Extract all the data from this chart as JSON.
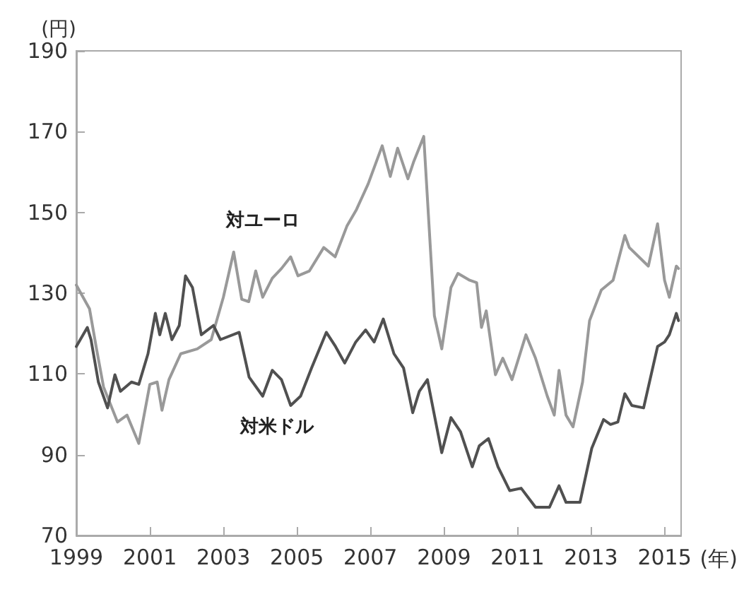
{
  "chart_data": {
    "type": "line",
    "xlabel": "(年)",
    "ylabel": "(円)",
    "xlim": [
      1999,
      2015.45
    ],
    "ylim": [
      70,
      190
    ],
    "xticks": [
      1999,
      2001,
      2003,
      2005,
      2007,
      2009,
      2011,
      2013,
      2015
    ],
    "yticks": [
      70,
      90,
      110,
      130,
      150,
      170,
      190
    ],
    "grid": false,
    "marker": "none",
    "line_style": "solid",
    "series": [
      {
        "name": "対ユーロ",
        "color": "#999999",
        "x": [
          1999,
          1999.36,
          1999.55,
          1999.74,
          2000.12,
          2000.38,
          2000.7,
          2001,
          2001.2,
          2001.33,
          2001.52,
          2001.84,
          2002.29,
          2002.67,
          2003,
          2003.28,
          2003.5,
          2003.69,
          2003.88,
          2004.07,
          2004.33,
          2004.58,
          2004.83,
          2005.03,
          2005.34,
          2005.73,
          2006.04,
          2006.36,
          2006.62,
          2006.94,
          2007.32,
          2007.54,
          2007.74,
          2008.02,
          2008.17,
          2008.45,
          2008.74,
          2008.94,
          2009.19,
          2009.38,
          2009.7,
          2009.89,
          2010.02,
          2010.15,
          2010.4,
          2010.6,
          2010.85,
          2011.23,
          2011.49,
          2011.81,
          2012,
          2012.13,
          2012.32,
          2012.51,
          2012.77,
          2012.96,
          2013.28,
          2013.6,
          2013.92,
          2014.04,
          2014.56,
          2014.81,
          2015,
          2015.13,
          2015.32,
          2015.38
        ],
        "values": [
          132,
          126.1,
          116.2,
          106.8,
          98.1,
          99.8,
          92.8,
          107.4,
          108,
          101,
          108.6,
          115,
          116.2,
          118.5,
          129,
          140.2,
          128.5,
          127.9,
          135.5,
          129,
          133.7,
          136.1,
          139,
          134.3,
          135.5,
          141.3,
          139,
          146.6,
          150.7,
          157.1,
          166.5,
          158.9,
          165.9,
          158.3,
          162.4,
          168.8,
          124.4,
          116.2,
          131.4,
          134.9,
          133.2,
          132.6,
          121.5,
          125.6,
          109.8,
          113.9,
          108.6,
          119.7,
          113.9,
          104.5,
          99.8,
          110.9,
          99.8,
          96.9,
          108,
          123.2,
          130.8,
          133.2,
          144.3,
          141.3,
          136.7,
          147.2,
          133.2,
          129,
          136.7,
          136.1
        ]
      },
      {
        "name": "対米ドル",
        "color": "#505050",
        "x": [
          1999,
          1999.3,
          1999.4,
          1999.6,
          1999.85,
          2000.05,
          2000.2,
          2000.5,
          2000.7,
          2000.95,
          2001.15,
          2001.27,
          2001.42,
          2001.6,
          2001.8,
          2001.97,
          2002.16,
          2002.4,
          2002.73,
          2002.92,
          2003.43,
          2003.7,
          2004.07,
          2004.33,
          2004.58,
          2004.83,
          2005.1,
          2005.4,
          2005.8,
          2006.05,
          2006.3,
          2006.6,
          2006.87,
          2007.1,
          2007.35,
          2007.64,
          2007.9,
          2008.15,
          2008.33,
          2008.55,
          2008.94,
          2009.19,
          2009.45,
          2009.77,
          2009.96,
          2010.21,
          2010.47,
          2010.79,
          2011.1,
          2011.49,
          2011.87,
          2012.13,
          2012.32,
          2012.7,
          2013.02,
          2013.34,
          2013.53,
          2013.73,
          2013.92,
          2014.11,
          2014.43,
          2014.81,
          2015,
          2015.13,
          2015.32,
          2015.38
        ],
        "values": [
          116.8,
          121.5,
          118.5,
          108,
          101.6,
          109.8,
          105.7,
          108,
          107.4,
          115,
          125,
          119.7,
          125,
          118.5,
          122,
          134.3,
          131.4,
          119.7,
          122,
          118.5,
          120.3,
          109.2,
          104.5,
          110.9,
          108.6,
          102.2,
          104.5,
          111.5,
          120.3,
          116.8,
          112.7,
          117.9,
          120.9,
          117.9,
          123.6,
          115,
          111.5,
          100.4,
          105.7,
          108.6,
          90.5,
          99.2,
          95.7,
          87,
          92.2,
          94,
          87,
          81.1,
          81.7,
          77,
          77,
          82.3,
          78.2,
          78.2,
          91.6,
          98.7,
          97.5,
          98.1,
          105.1,
          102.2,
          101.6,
          116.8,
          117.9,
          119.7,
          125,
          123.2
        ]
      }
    ]
  }
}
